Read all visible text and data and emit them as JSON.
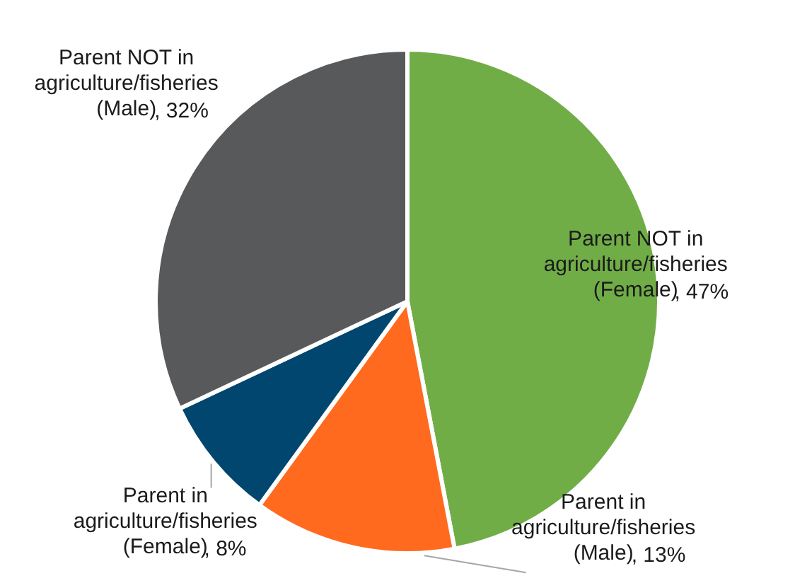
{
  "chart_data": {
    "type": "pie",
    "categories": [
      "Parent NOT in agriculture/fisheries (Female)",
      "Parent in agriculture/fisheries (Male)",
      "Parent in agriculture/fisheries (Female)",
      "Parent NOT in agriculture/fisheries (Male)"
    ],
    "values": [
      47,
      13,
      8,
      32
    ],
    "value_labels": [
      ", 47%",
      ", 13%",
      ", 8%",
      ", 32%"
    ],
    "colors": [
      "#70ad47",
      "#ff6a1f",
      "#00466f",
      "#58595b"
    ]
  }
}
